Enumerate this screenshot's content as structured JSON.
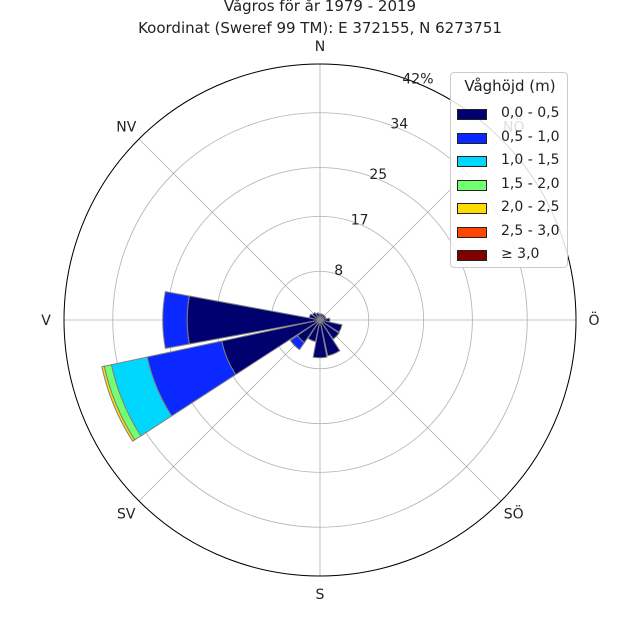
{
  "title": "Vågros för år 1979 - 2019",
  "subtitle": "Koordinat (Sweref 99 TM): E 372155, N 6273751",
  "chart_data": {
    "type": "polar-stacked-bar",
    "title": "Vågros för år 1979 - 2019",
    "subtitle": "Koordinat (Sweref 99 TM): E 372155, N 6273751",
    "directions": [
      "N",
      "NÖ",
      "Ö",
      "SÖ",
      "S",
      "SV",
      "V",
      "NV"
    ],
    "radial_ticks": [
      "8",
      "17",
      "25",
      "34",
      "42%"
    ],
    "r_max": 42,
    "legend": {
      "title": "Våghöjd (m)",
      "placement": "top-right",
      "bins": [
        {
          "label": "0,0 - 0,5",
          "color": "#00006e"
        },
        {
          "label": "0,5 - 1,0",
          "color": "#0a28ff"
        },
        {
          "label": "1,0 - 1,5",
          "color": "#00d7ff"
        },
        {
          "label": "1,5 - 2,0",
          "color": "#72ff72"
        },
        {
          "label": "2,0 - 2,5",
          "color": "#ffdc00"
        },
        {
          "label": "2,5 - 3,0",
          "color": "#ff4500"
        },
        {
          "label": "≥ 3,0",
          "color": "#800000"
        }
      ]
    },
    "sectors": [
      {
        "direction_deg": 0,
        "values": [
          1.0
        ]
      },
      {
        "direction_deg": 22.5,
        "values": [
          1.0
        ]
      },
      {
        "direction_deg": 45,
        "values": [
          1.0
        ]
      },
      {
        "direction_deg": 67.5,
        "values": [
          1.0
        ]
      },
      {
        "direction_deg": 90,
        "values": [
          1.6
        ]
      },
      {
        "direction_deg": 112.5,
        "values": [
          3.7
        ]
      },
      {
        "direction_deg": 135,
        "values": [
          3.8
        ]
      },
      {
        "direction_deg": 157.5,
        "values": [
          6.0
        ]
      },
      {
        "direction_deg": 180,
        "values": [
          6.2
        ]
      },
      {
        "direction_deg": 202.5,
        "values": [
          3.6
        ]
      },
      {
        "direction_deg": 225,
        "values": [
          4.5,
          1.4
        ]
      },
      {
        "direction_deg": 247.5,
        "values": [
          16.5,
          12.5,
          6.0,
          1.2,
          0.4
        ]
      },
      {
        "direction_deg": 270,
        "values": [
          21.8,
          4.0
        ]
      },
      {
        "direction_deg": 292.5,
        "values": [
          1.8
        ]
      },
      {
        "direction_deg": 315,
        "values": [
          1.5
        ]
      },
      {
        "direction_deg": 337.5,
        "values": [
          1.2
        ]
      }
    ]
  }
}
